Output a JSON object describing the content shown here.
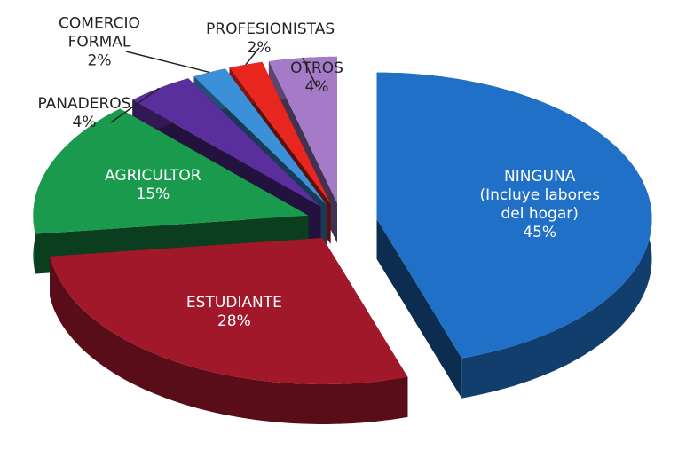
{
  "chart_data": {
    "type": "pie",
    "categories": [
      "NINGUNA (Incluye labores del hogar)",
      "ESTUDIANTE",
      "AGRICULTOR",
      "PANADEROS",
      "COMERCIO FORMAL",
      "PROFESIONISTAS",
      "OTROS"
    ],
    "values": [
      45,
      28,
      15,
      4,
      2,
      2,
      4
    ],
    "value_labels": [
      "45%",
      "28%",
      "15%",
      "4%",
      "2%",
      "2%",
      "4%"
    ],
    "colors": [
      "#1f70c6",
      "#a2182b",
      "#1a9a4c",
      "#5a2e9c",
      "#3c90d8",
      "#e8261f",
      "#a57bc8"
    ]
  }
}
